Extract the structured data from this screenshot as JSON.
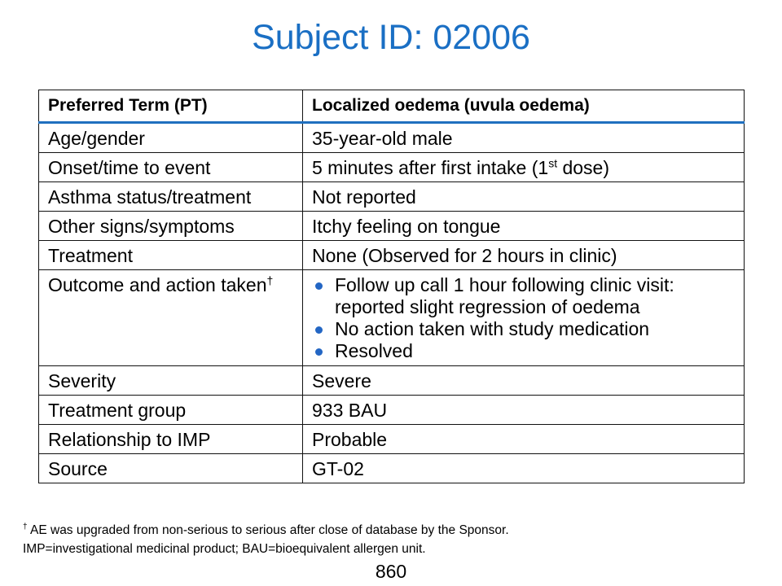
{
  "title": "Subject ID: 02006",
  "table": {
    "header": [
      "Preferred Term (PT)",
      "Localized oedema (uvula oedema)"
    ],
    "rows": [
      {
        "label": "Age/gender",
        "value": "35-year-old male"
      },
      {
        "label": "Onset/time to event",
        "value_before": "5 minutes after first intake (1",
        "value_sup": "st",
        "value_after": " dose)"
      },
      {
        "label": "Asthma status/treatment",
        "value": "Not reported"
      },
      {
        "label": "Other signs/symptoms",
        "value": "Itchy feeling on tongue"
      },
      {
        "label": "Treatment",
        "value": "None (Observed for 2 hours in clinic)"
      },
      {
        "label": "Outcome and action taken",
        "label_sup": "†",
        "bullets": [
          "Follow up call 1 hour following clinic visit: reported slight regression of oedema",
          "No action taken with study medication",
          "Resolved"
        ]
      },
      {
        "label": "Severity",
        "value": "Severe"
      },
      {
        "label": "Treatment group",
        "value": "933 BAU"
      },
      {
        "label": "Relationship to IMP",
        "value": "Probable"
      },
      {
        "label": "Source",
        "value": "GT-02"
      }
    ]
  },
  "footnotes": {
    "dagger_mark": "†",
    "line1": " AE was upgraded from non-serious to serious after close of database by the Sponsor.",
    "line2": "IMP=investigational medicinal product; BAU=bioequivalent allergen unit."
  },
  "page_number": "860",
  "colors": {
    "title": "#1a6fc4",
    "header_rule": "#1f6fbf",
    "bullet": "#2366c4"
  }
}
